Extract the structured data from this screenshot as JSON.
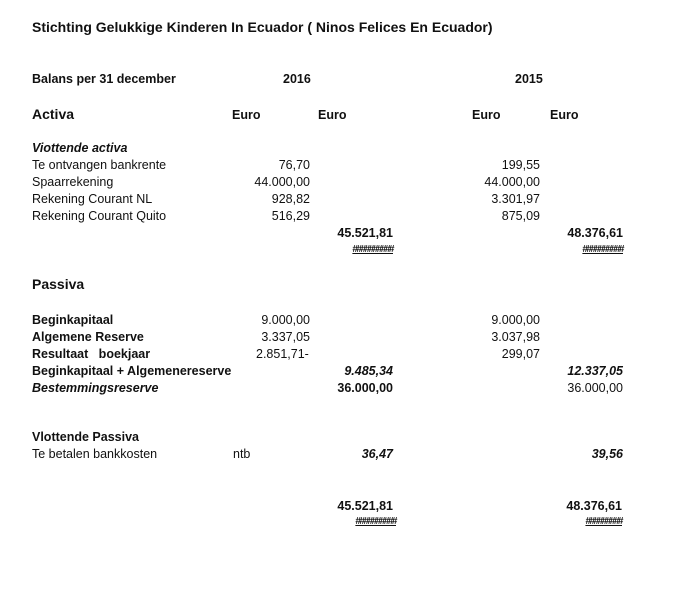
{
  "title": "Stichting Gelukkige Kinderen In Ecuador ( Ninos Felices En Ecuador)",
  "balans_label": "Balans per 31 december",
  "year_2016": "2016",
  "year_2015": "2015",
  "currency": "Euro",
  "activa": {
    "heading": "Activa",
    "subheading": "Viottende activa",
    "rows": [
      {
        "label": "Te ontvangen bankrente",
        "v2016": "76,70",
        "v2015": "199,55"
      },
      {
        "label": "Spaarrekening",
        "v2016": "44.000,00",
        "v2015": "44.000,00"
      },
      {
        "label": "Rekening Courant NL",
        "v2016": "928,82",
        "v2015": "3.301,97"
      },
      {
        "label": "Rekening Courant Quito",
        "v2016": "516,29",
        "v2015": "875,09"
      }
    ],
    "total_2016": "45.521,81",
    "total_2015": "48.376,61",
    "overflow_2016": "##########",
    "overflow_2015": "##########"
  },
  "passiva": {
    "heading": "Passiva",
    "rows": [
      {
        "label": "Beginkapitaal",
        "v2016": "9.000,00",
        "v2015": "9.000,00"
      },
      {
        "label": "Algemene Reserve",
        "v2016": "3.337,05",
        "v2015": "3.037,98"
      },
      {
        "label": "Resultaat   boekjaar",
        "v2016": "2.851,71-",
        "v2015": "299,07"
      }
    ],
    "subtotal_label": "Beginkapitaal + Algemenereserve",
    "subtotal_2016": "9.485,34",
    "subtotal_2015": "12.337,05",
    "bestemming_label": "Bestemmingsreserve",
    "bestemming_2016": "36.000,00",
    "bestemming_2015": "36.000,00",
    "vlottende_heading": "Vlottende Passiva",
    "bankkosten_label": "Te betalen bankkosten",
    "bankkosten_note": "ntb",
    "bankkosten_2016": "36,47",
    "bankkosten_2015": "39,56",
    "total_2016": "45.521,81",
    "total_2015": "48.376,61",
    "overflow_2016": "##########",
    "overflow_2015": "#########"
  }
}
